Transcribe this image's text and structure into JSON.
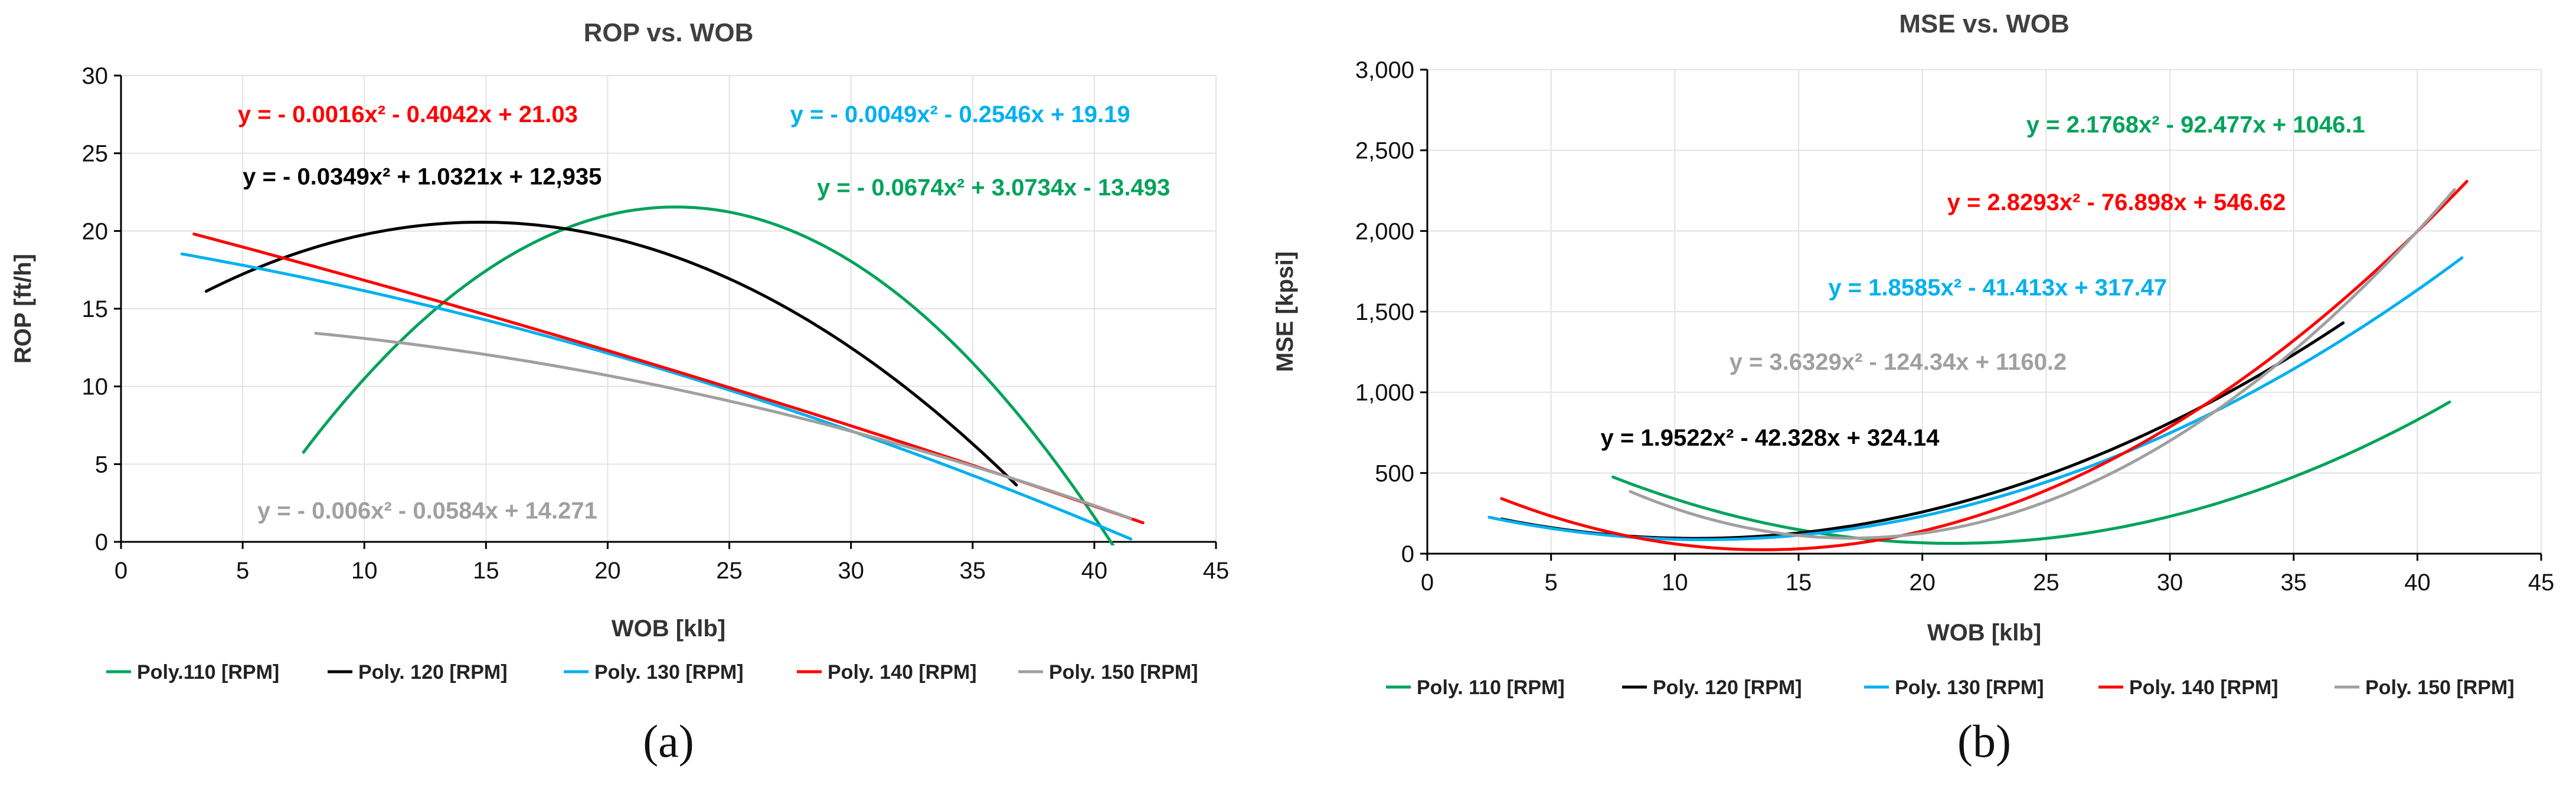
{
  "chart_data": [
    {
      "type": "line",
      "title": "ROP vs. WOB",
      "xlabel": "WOB [klb]",
      "ylabel": "ROP [ft/h]",
      "xlim": [
        0,
        45
      ],
      "ylim": [
        0,
        30
      ],
      "xticks": [
        "0",
        "5",
        "10",
        "15",
        "20",
        "25",
        "30",
        "35",
        "40",
        "45"
      ],
      "yticks": [
        "0",
        "5",
        "10",
        "15",
        "20",
        "25",
        "30"
      ],
      "grid": true,
      "legend_position": "bottom",
      "panel_label": "(a)",
      "series": [
        {
          "name": "Poly.110 [RPM]",
          "color": "#00A35A",
          "coef": [
            -0.0674,
            3.0734,
            -13.493
          ],
          "x_range": [
            7.5,
            40.8
          ]
        },
        {
          "name": "Poly. 120 [RPM]",
          "color": "#000000",
          "coef": [
            -0.0349,
            1.0321,
            12.935
          ],
          "x_range": [
            3.5,
            36.8
          ]
        },
        {
          "name": "Poly. 130 [RPM]",
          "color": "#00B0F0",
          "coef": [
            -0.0049,
            -0.2546,
            19.19
          ],
          "x_range": [
            2.5,
            41.5
          ]
        },
        {
          "name": "Poly. 140 [RPM]",
          "color": "#FF0000",
          "coef": [
            -0.0016,
            -0.4042,
            21.03
          ],
          "x_range": [
            3.0,
            42.0
          ]
        },
        {
          "name": "Poly. 150 [RPM]",
          "color": "#A0A0A0",
          "coef": [
            -0.006,
            -0.0584,
            14.271
          ],
          "x_range": [
            8.0,
            41.5
          ]
        }
      ],
      "annotations": [
        {
          "text": "y = - 0.0016x² - 0.4042x + 21.03",
          "color": "#FF0000",
          "x": 4.8,
          "y": 27.0
        },
        {
          "text": "y = - 0.0049x² - 0.2546x + 19.19",
          "color": "#00B0F0",
          "x": 27.5,
          "y": 27.0
        },
        {
          "text": "y = - 0.0349x² + 1.0321x + 12,935",
          "color": "#000000",
          "x": 5.0,
          "y": 23.0
        },
        {
          "text": "y = - 0.0674x² + 3.0734x - 13.493",
          "color": "#00A35A",
          "x": 28.6,
          "y": 22.3
        },
        {
          "text": "y = - 0.006x² - 0.0584x + 14.271",
          "color": "#A0A0A0",
          "x": 5.6,
          "y": 1.5
        }
      ]
    },
    {
      "type": "line",
      "title": "MSE vs. WOB",
      "xlabel": "WOB [klb]",
      "ylabel": "MSE [kpsi]",
      "xlim": [
        0,
        45
      ],
      "ylim": [
        0,
        3000
      ],
      "xticks": [
        "0",
        "5",
        "10",
        "15",
        "20",
        "25",
        "30",
        "35",
        "40",
        "45"
      ],
      "yticks": [
        "0",
        "500",
        "1,000",
        "1,500",
        "2,000",
        "2,500",
        "3,000"
      ],
      "grid": true,
      "legend_position": "bottom",
      "panel_label": "(b)",
      "series": [
        {
          "name": "Poly. 110 [RPM]",
          "color": "#00A35A",
          "coef": [
            2.1768,
            -92.477,
            1046.1
          ],
          "x_range": [
            7.5,
            41.3
          ]
        },
        {
          "name": "Poly. 120 [RPM]",
          "color": "#000000",
          "coef": [
            1.9522,
            -42.328,
            324.14
          ],
          "x_range": [
            3.0,
            37.0
          ]
        },
        {
          "name": "Poly. 130 [RPM]",
          "color": "#00B0F0",
          "coef": [
            1.8585,
            -41.413,
            317.47
          ],
          "x_range": [
            2.5,
            41.8
          ]
        },
        {
          "name": "Poly. 140 [RPM]",
          "color": "#FF0000",
          "coef": [
            2.8293,
            -76.898,
            546.62
          ],
          "x_range": [
            3.0,
            42.0
          ]
        },
        {
          "name": "Poly. 150 [RPM]",
          "color": "#A0A0A0",
          "coef": [
            3.6329,
            -124.34,
            1160.2
          ],
          "x_range": [
            8.2,
            41.5
          ]
        }
      ],
      "annotations": [
        {
          "text": "y = 2.1768x² - 92.477x + 1046.1",
          "color": "#00A35A",
          "x": 24.2,
          "y": 2610
        },
        {
          "text": "y = 2.8293x² - 76.898x + 546.62",
          "color": "#FF0000",
          "x": 21.0,
          "y": 2130
        },
        {
          "text": "y = 1.8585x² - 41.413x + 317.47",
          "color": "#00B0F0",
          "x": 16.2,
          "y": 1600
        },
        {
          "text": "y = 3.6329x² - 124.34x + 1160.2",
          "color": "#A0A0A0",
          "x": 12.2,
          "y": 1140
        },
        {
          "text": "y = 1.9522x² - 42.328x + 324.14",
          "color": "#000000",
          "x": 7.0,
          "y": 670
        }
      ]
    }
  ]
}
